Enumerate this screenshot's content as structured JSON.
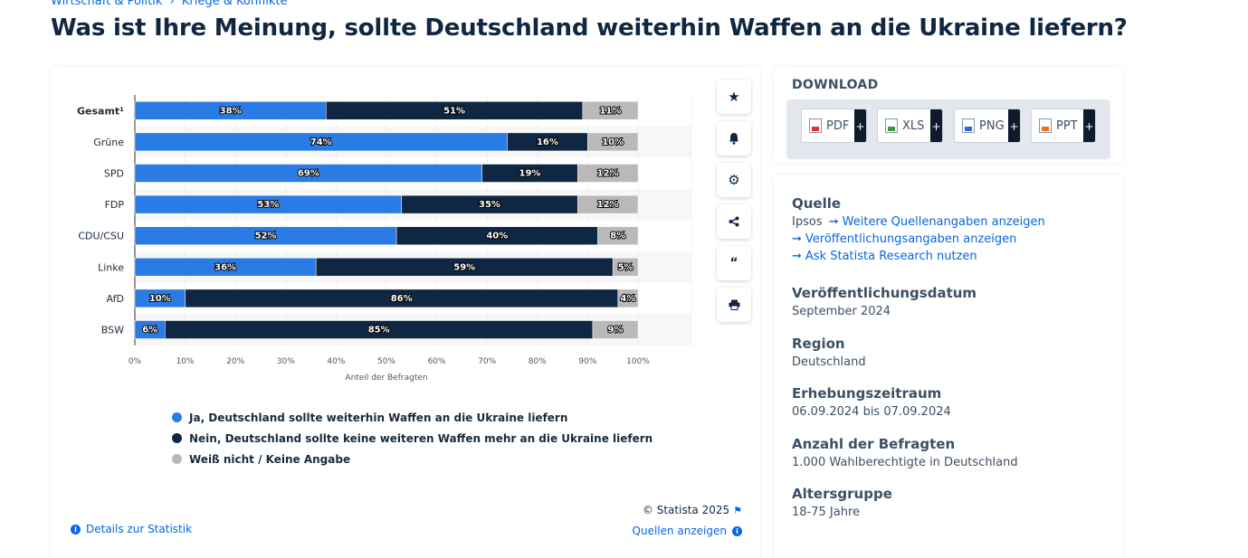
{
  "breadcrumb": [
    "Wirtschaft & Politik",
    "›",
    "Kriege & Konflikte"
  ],
  "page_title": "Was ist Ihre Meinung, sollte Deutschland weiterhin Waffen an die Ukraine liefern?",
  "colors": {
    "ja": "#2b7be5",
    "nein": "#0f2742",
    "weiss": "#b9b9b9",
    "link": "#0666e5"
  },
  "chart_data": {
    "type": "bar",
    "orientation": "horizontal",
    "stacked": true,
    "categories": [
      "Gesamt¹",
      "Grüne",
      "SPD",
      "FDP",
      "CDU/CSU",
      "Linke",
      "AfD",
      "BSW"
    ],
    "series": [
      {
        "name": "Ja, Deutschland sollte weiterhin Waffen an die Ukraine liefern",
        "values": [
          38,
          74,
          69,
          53,
          52,
          36,
          10,
          6
        ]
      },
      {
        "name": "Nein, Deutschland sollte keine weiteren Waffen mehr an die Ukraine liefern",
        "values": [
          51,
          16,
          19,
          35,
          40,
          59,
          86,
          85
        ]
      },
      {
        "name": "Weiß nicht / Keine Angabe",
        "values": [
          11,
          10,
          12,
          12,
          8,
          5,
          4,
          9
        ]
      }
    ],
    "value_suffix": "%",
    "xlabel": "Anteil der Befragten",
    "xticks": [
      "0%",
      "10%",
      "20%",
      "30%",
      "40%",
      "50%",
      "60%",
      "70%",
      "80%",
      "90%",
      "100%"
    ],
    "xlim": [
      0,
      100
    ],
    "grid": true,
    "legend_position": "bottom"
  },
  "chart_footer": {
    "copyright": "© Statista 2025",
    "details_link": "Details zur Statistik",
    "sources_link": "Quellen anzeigen"
  },
  "side_tools": [
    "star-icon",
    "bell-icon",
    "gear-icon",
    "share-icon",
    "quote-icon",
    "print-icon"
  ],
  "download": {
    "title": "DOWNLOAD",
    "buttons": [
      {
        "label": "PDF",
        "plus": "+"
      },
      {
        "label": "XLS",
        "plus": "+"
      },
      {
        "label": "PNG",
        "plus": "+"
      },
      {
        "label": "PPT",
        "plus": "+"
      }
    ]
  },
  "info": {
    "source_heading": "Quelle",
    "source_name": "Ipsos",
    "source_more": "Weitere Quellenangaben anzeigen",
    "publication_info": "Veröffentlichungsangaben anzeigen",
    "ask_research": "Ask Statista Research nutzen",
    "pubdate_heading": "Veröffentlichungsdatum",
    "pubdate_value": "September 2024",
    "region_heading": "Region",
    "region_value": "Deutschland",
    "period_heading": "Erhebungszeitraum",
    "period_value": "06.09.2024 bis 07.09.2024",
    "respondents_heading": "Anzahl der Befragten",
    "respondents_value": "1.000 Wahlberechtigte in Deutschland",
    "age_heading": "Altersgruppe",
    "age_value": "18-75 Jahre"
  }
}
